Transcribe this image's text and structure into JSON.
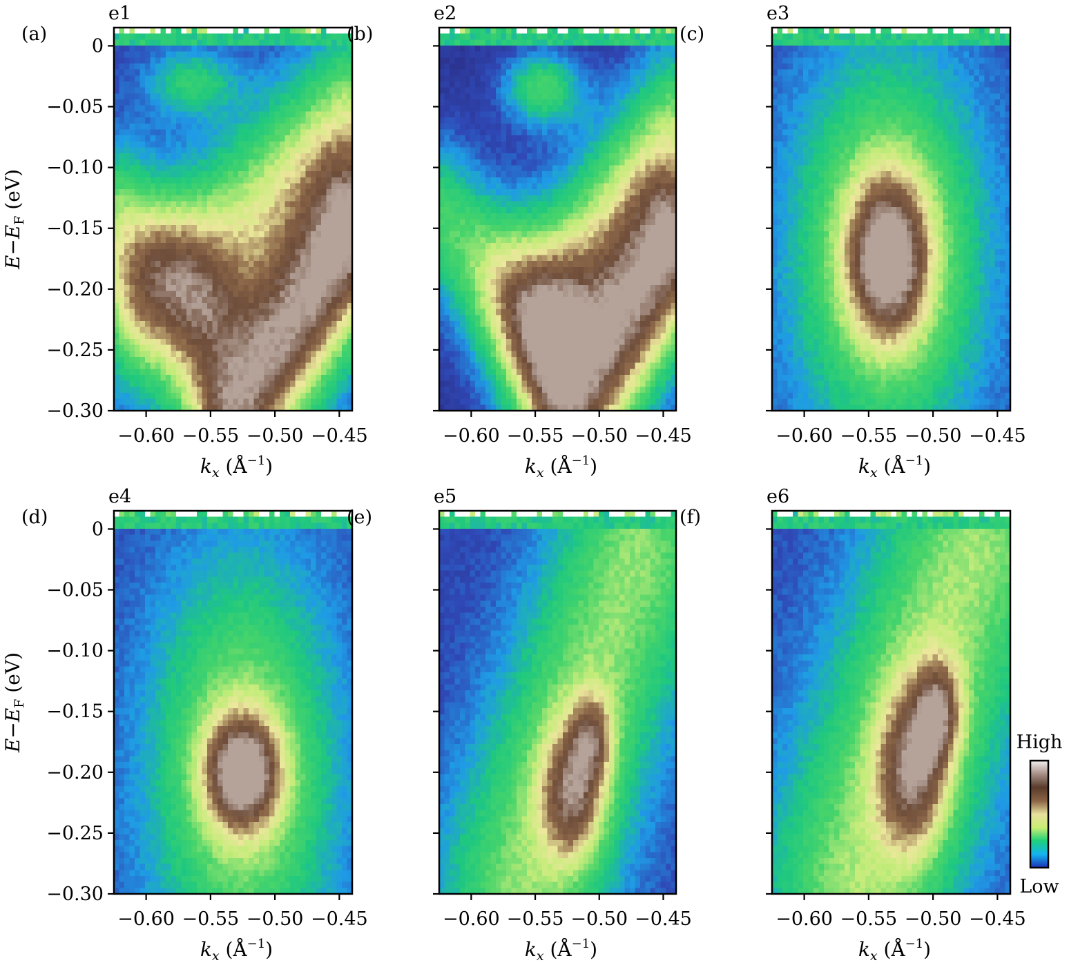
{
  "chart_data": [
    {
      "type": "heatmap",
      "letter": "(a)",
      "name": "e1",
      "xlabel": "k",
      "xlabel_sub": "x",
      "xlabel_unit": "(Å",
      "xlabel_exp": "−1",
      "xlabel_close": ")",
      "ylabel": "E−E",
      "ylabel_sub": "F",
      "ylabel_unit": "(eV)",
      "xlim": [
        -0.625,
        -0.44
      ],
      "ylim": [
        -0.3,
        0.015
      ],
      "xticks": [
        -0.6,
        -0.55,
        -0.5,
        -0.45
      ],
      "xtick_labels": [
        "−0.60",
        "−0.55",
        "−0.50",
        "−0.45"
      ],
      "yticks": [
        0,
        -0.05,
        -0.1,
        -0.15,
        -0.2,
        -0.25,
        -0.3
      ],
      "ytick_labels": [
        "0",
        "−0.05",
        "−0.10",
        "−0.15",
        "−0.20",
        "−0.25",
        "−0.30"
      ],
      "show_ylabels": true,
      "features": [
        {
          "kind": "band",
          "x0": -0.6,
          "y0": -0.215,
          "x1": -0.44,
          "y1": -0.06,
          "width": 0.03,
          "amp": 0.48
        },
        {
          "kind": "band",
          "x0": -0.53,
          "y0": -0.3,
          "x1": -0.44,
          "y1": -0.16,
          "width": 0.028,
          "amp": 0.85
        },
        {
          "kind": "band",
          "x0": -0.625,
          "y0": -0.14,
          "x1": -0.56,
          "y1": -0.215,
          "width": 0.025,
          "amp": 0.38
        },
        {
          "kind": "spot",
          "x": -0.565,
          "y": -0.03,
          "sx": 0.025,
          "sy": 0.02,
          "amp": 0.3
        }
      ],
      "background": 0.1,
      "fermi_edge": 0.012
    },
    {
      "type": "heatmap",
      "letter": "(b)",
      "name": "e2",
      "xlabel": "k",
      "xlabel_sub": "x",
      "xlabel_unit": "(Å",
      "xlabel_exp": "−1",
      "xlabel_close": ")",
      "xlim": [
        -0.625,
        -0.44
      ],
      "ylim": [
        -0.3,
        0.015
      ],
      "xticks": [
        -0.6,
        -0.55,
        -0.5,
        -0.45
      ],
      "xtick_labels": [
        "−0.60",
        "−0.55",
        "−0.50",
        "−0.45"
      ],
      "yticks": [
        0,
        -0.05,
        -0.1,
        -0.15,
        -0.2,
        -0.25,
        -0.3
      ],
      "show_ylabels": false,
      "features": [
        {
          "kind": "band",
          "x0": -0.55,
          "y0": -0.22,
          "x1": -0.44,
          "y1": -0.07,
          "width": 0.03,
          "amp": 0.5
        },
        {
          "kind": "band",
          "x0": -0.625,
          "y0": -0.14,
          "x1": -0.55,
          "y1": -0.22,
          "width": 0.026,
          "amp": 0.42
        },
        {
          "kind": "band",
          "x0": -0.52,
          "y0": -0.3,
          "x1": -0.44,
          "y1": -0.17,
          "width": 0.028,
          "amp": 0.82
        },
        {
          "kind": "spot",
          "x": -0.545,
          "y": -0.035,
          "sx": 0.022,
          "sy": 0.022,
          "amp": 0.42
        }
      ],
      "background": 0.04,
      "fermi_edge": 0.012
    },
    {
      "type": "heatmap",
      "letter": "(c)",
      "name": "e3",
      "xlabel": "k",
      "xlabel_sub": "x",
      "xlabel_unit": "(Å",
      "xlabel_exp": "−1",
      "xlabel_close": ")",
      "xlim": [
        -0.625,
        -0.44
      ],
      "ylim": [
        -0.3,
        0.015
      ],
      "xticks": [
        -0.6,
        -0.55,
        -0.5,
        -0.45
      ],
      "xtick_labels": [
        "−0.60",
        "−0.55",
        "−0.50",
        "−0.45"
      ],
      "yticks": [
        0,
        -0.05,
        -0.1,
        -0.15,
        -0.2,
        -0.25,
        -0.3
      ],
      "show_ylabels": false,
      "features": [
        {
          "kind": "spot",
          "x": -0.535,
          "y": -0.17,
          "sx": 0.05,
          "sy": 0.11,
          "amp": 0.55
        },
        {
          "kind": "spot",
          "x": -0.535,
          "y": -0.175,
          "sx": 0.022,
          "sy": 0.045,
          "amp": 0.5
        }
      ],
      "background": 0.12,
      "fermi_edge": 0.012
    },
    {
      "type": "heatmap",
      "letter": "(d)",
      "name": "e4",
      "xlabel": "k",
      "xlabel_sub": "x",
      "xlabel_unit": "(Å",
      "xlabel_exp": "−1",
      "xlabel_close": ")",
      "ylabel": "E−E",
      "ylabel_sub": "F",
      "ylabel_unit": "(eV)",
      "xlim": [
        -0.625,
        -0.44
      ],
      "ylim": [
        -0.3,
        0.015
      ],
      "xticks": [
        -0.6,
        -0.55,
        -0.5,
        -0.45
      ],
      "xtick_labels": [
        "−0.60",
        "−0.55",
        "−0.50",
        "−0.45"
      ],
      "yticks": [
        0,
        -0.05,
        -0.1,
        -0.15,
        -0.2,
        -0.25,
        -0.3
      ],
      "ytick_labels": [
        "0",
        "−0.05",
        "−0.10",
        "−0.15",
        "−0.20",
        "−0.25",
        "−0.30"
      ],
      "show_ylabels": true,
      "features": [
        {
          "kind": "spot",
          "x": -0.525,
          "y": -0.2,
          "sx": 0.05,
          "sy": 0.12,
          "amp": 0.5
        },
        {
          "kind": "spot",
          "x": -0.525,
          "y": -0.2,
          "sx": 0.021,
          "sy": 0.032,
          "amp": 0.55
        }
      ],
      "background": 0.12,
      "fermi_edge": 0.01
    },
    {
      "type": "heatmap",
      "letter": "(e)",
      "name": "e5",
      "xlabel": "k",
      "xlabel_sub": "x",
      "xlabel_unit": "(Å",
      "xlabel_exp": "−1",
      "xlabel_close": ")",
      "xlim": [
        -0.625,
        -0.44
      ],
      "ylim": [
        -0.3,
        0.015
      ],
      "xticks": [
        -0.6,
        -0.55,
        -0.5,
        -0.45
      ],
      "xtick_labels": [
        "−0.60",
        "−0.55",
        "−0.50",
        "−0.45"
      ],
      "yticks": [
        0,
        -0.05,
        -0.1,
        -0.15,
        -0.2,
        -0.25,
        -0.3
      ],
      "show_ylabels": false,
      "features": [
        {
          "kind": "band",
          "x0": -0.56,
          "y0": -0.29,
          "x1": -0.47,
          "y1": -0.02,
          "width": 0.045,
          "amp": 0.45
        },
        {
          "kind": "spot",
          "x": -0.52,
          "y": -0.22,
          "sx": 0.018,
          "sy": 0.04,
          "amp": 0.45
        },
        {
          "kind": "spot",
          "x": -0.505,
          "y": -0.17,
          "sx": 0.012,
          "sy": 0.025,
          "amp": 0.3
        }
      ],
      "background": 0.1,
      "fermi_edge": 0.01
    },
    {
      "type": "heatmap",
      "letter": "(f)",
      "name": "e6",
      "xlabel": "k",
      "xlabel_sub": "x",
      "xlabel_unit": "(Å",
      "xlabel_exp": "−1",
      "xlabel_close": ")",
      "xlim": [
        -0.625,
        -0.44
      ],
      "ylim": [
        -0.3,
        0.015
      ],
      "xticks": [
        -0.6,
        -0.55,
        -0.5,
        -0.45
      ],
      "xtick_labels": [
        "−0.60",
        "−0.55",
        "−0.50",
        "−0.45"
      ],
      "yticks": [
        0,
        -0.05,
        -0.1,
        -0.15,
        -0.2,
        -0.25,
        -0.3
      ],
      "show_ylabels": false,
      "features": [
        {
          "kind": "band",
          "x0": -0.56,
          "y0": -0.29,
          "x1": -0.47,
          "y1": -0.02,
          "width": 0.05,
          "amp": 0.45
        },
        {
          "kind": "spot",
          "x": -0.515,
          "y": -0.2,
          "sx": 0.02,
          "sy": 0.05,
          "amp": 0.45
        },
        {
          "kind": "spot",
          "x": -0.495,
          "y": -0.15,
          "sx": 0.013,
          "sy": 0.03,
          "amp": 0.35
        }
      ],
      "background": 0.12,
      "fermi_edge": 0.01
    }
  ],
  "colorbar": {
    "high_label": "High",
    "low_label": "Low",
    "colors": [
      "#1c2fb5",
      "#14b4f0",
      "#1ed07a",
      "#c9ee74",
      "#e6e09c",
      "#8a6345",
      "#5a3b2c",
      "#a68f86",
      "#f4f1f2"
    ]
  },
  "colormap": [
    [
      0.0,
      "#2b2f88"
    ],
    [
      0.12,
      "#2f48b5"
    ],
    [
      0.24,
      "#1f9be6"
    ],
    [
      0.36,
      "#1fc87f"
    ],
    [
      0.48,
      "#48d46a"
    ],
    [
      0.6,
      "#c4ec7a"
    ],
    [
      0.7,
      "#ece79c"
    ],
    [
      0.8,
      "#8f6a4a"
    ],
    [
      0.9,
      "#6e4d3a"
    ],
    [
      1.0,
      "#b5a39a"
    ]
  ]
}
